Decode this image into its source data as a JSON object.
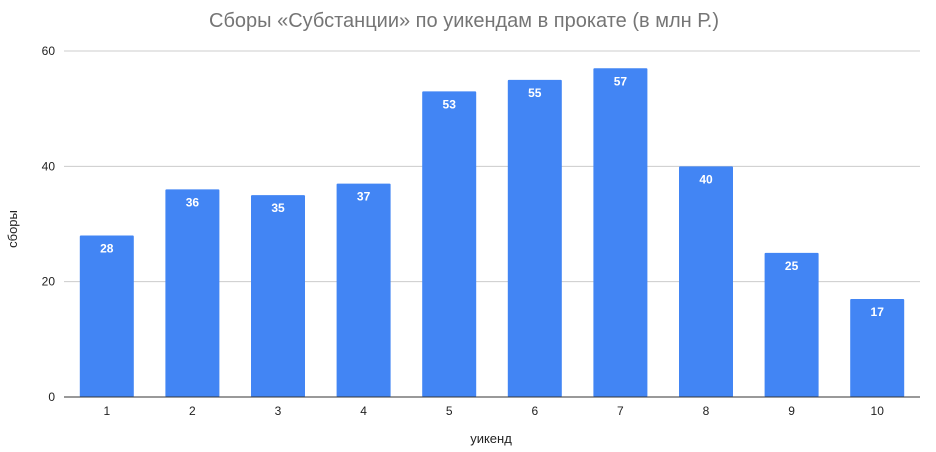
{
  "chart_data": {
    "type": "bar",
    "title": "Сборы «Субстанции» по уикендам в прокате (в млн Р.)",
    "xlabel": "уикенд",
    "ylabel": "сборы",
    "categories": [
      "1",
      "2",
      "3",
      "4",
      "5",
      "6",
      "7",
      "8",
      "9",
      "10"
    ],
    "series": [
      {
        "values": [
          28,
          36,
          35,
          37,
          53,
          55,
          57,
          40,
          25,
          17
        ]
      }
    ],
    "ylim": [
      0,
      60
    ],
    "yticks": [
      "0",
      "20",
      "40",
      "60"
    ],
    "grid": true,
    "legend": "none",
    "bar_color": "#4285f4"
  }
}
